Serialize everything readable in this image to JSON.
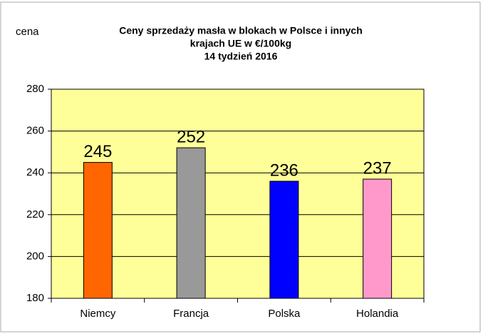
{
  "chart_data": {
    "type": "bar",
    "title": [
      "Ceny sprzedaży masła w blokach w Polsce i  innych",
      "krajach UE w €/100kg",
      "14 tydzień 2016"
    ],
    "y_label": "cena",
    "categories": [
      "Niemcy",
      "Francja",
      "Polska",
      "Holandia"
    ],
    "values": [
      245,
      252,
      236,
      237
    ],
    "colors": [
      "#ff6600",
      "#999999",
      "#0000ff",
      "#ff99cc"
    ],
    "ylim": [
      180,
      280
    ],
    "yticks": [
      180,
      200,
      220,
      240,
      260,
      280
    ],
    "grid": true
  }
}
